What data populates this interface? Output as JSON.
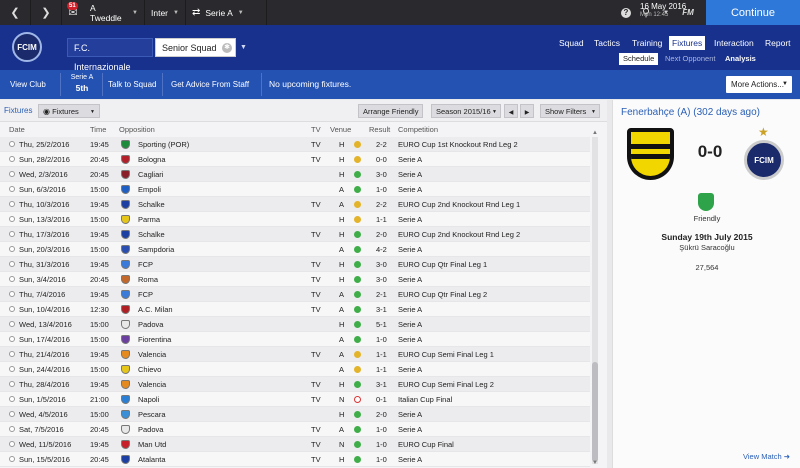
{
  "topbar": {
    "back_icon": "chevron-left-icon",
    "forward_icon": "chevron-right-icon",
    "inbox_count": "51",
    "manager": "A Tweddle",
    "club": "Inter",
    "league": "Serie A",
    "date": "16 May 2016",
    "time": "Mon 12:45",
    "continue_label": "Continue"
  },
  "clubbar": {
    "crest_text": "FCIM",
    "club_name": "F.C. Internazionale",
    "squad": "Senior Squad",
    "nav": [
      "Squad",
      "Tactics",
      "Training",
      "Fixtures",
      "Interaction",
      "Report"
    ],
    "nav_active": "Fixtures",
    "subnav": [
      "Schedule",
      "Next Opponent",
      "Analysis"
    ]
  },
  "infobar": {
    "view_club": "View Club",
    "league_name": "Serie A",
    "league_pos": "5th",
    "talk_to_squad": "Talk to Squad",
    "get_advice": "Get Advice From Staff",
    "message": "No upcoming fixtures.",
    "more_actions": "More Actions..."
  },
  "fixtures_toolbar": {
    "title": "Fixtures",
    "view_select": "Fixtures",
    "arrange_friendly": "Arrange Friendly",
    "season": "Season 2015/16",
    "show_filters": "Show Filters"
  },
  "table": {
    "headers": {
      "date": "Date",
      "time": "Time",
      "opposition": "Opposition",
      "tv": "TV",
      "venue": "Venue",
      "result": "Result",
      "competition": "Competition"
    },
    "rows": [
      {
        "date": "Thu, 25/2/2016",
        "time": "19:45",
        "opp": "Sporting (POR)",
        "tv": "TV",
        "venue": "H",
        "outcome": "draw",
        "result": "2-2",
        "comp": "EURO Cup 1st Knockout Rnd Leg 2",
        "crest": "#1e8a3c"
      },
      {
        "date": "Sun, 28/2/2016",
        "time": "20:45",
        "opp": "Bologna",
        "tv": "TV",
        "venue": "H",
        "outcome": "draw",
        "result": "0-0",
        "comp": "Serie A",
        "crest": "#b3202a"
      },
      {
        "date": "Wed, 2/3/2016",
        "time": "20:45",
        "opp": "Cagliari",
        "tv": "",
        "venue": "H",
        "outcome": "win",
        "result": "3-0",
        "comp": "Serie A",
        "crest": "#8a1f2a"
      },
      {
        "date": "Sun, 6/3/2016",
        "time": "15:00",
        "opp": "Empoli",
        "tv": "",
        "venue": "A",
        "outcome": "win",
        "result": "1-0",
        "comp": "Serie A",
        "crest": "#1f5fc4"
      },
      {
        "date": "Thu, 10/3/2016",
        "time": "19:45",
        "opp": "Schalke",
        "tv": "TV",
        "venue": "A",
        "outcome": "draw",
        "result": "2-2",
        "comp": "EURO Cup 2nd Knockout Rnd Leg 1",
        "crest": "#1c3fa3"
      },
      {
        "date": "Sun, 13/3/2016",
        "time": "15:00",
        "opp": "Parma",
        "tv": "",
        "venue": "H",
        "outcome": "draw",
        "result": "1-1",
        "comp": "Serie A",
        "crest": "#e6c619"
      },
      {
        "date": "Thu, 17/3/2016",
        "time": "19:45",
        "opp": "Schalke",
        "tv": "TV",
        "venue": "H",
        "outcome": "win",
        "result": "2-0",
        "comp": "EURO Cup 2nd Knockout Rnd Leg 2",
        "crest": "#1c3fa3"
      },
      {
        "date": "Sun, 20/3/2016",
        "time": "15:00",
        "opp": "Sampdoria",
        "tv": "",
        "venue": "A",
        "outcome": "win",
        "result": "4-2",
        "comp": "Serie A",
        "crest": "#2a4fb0"
      },
      {
        "date": "Thu, 31/3/2016",
        "time": "19:45",
        "opp": "FCP",
        "tv": "TV",
        "venue": "H",
        "outcome": "win",
        "result": "3-0",
        "comp": "EURO Cup Qtr Final Leg 1",
        "crest": "#3a7ad8"
      },
      {
        "date": "Sun, 3/4/2016",
        "time": "20:45",
        "opp": "Roma",
        "tv": "TV",
        "venue": "H",
        "outcome": "win",
        "result": "3-0",
        "comp": "Serie A",
        "crest": "#c2682a"
      },
      {
        "date": "Thu, 7/4/2016",
        "time": "19:45",
        "opp": "FCP",
        "tv": "TV",
        "venue": "A",
        "outcome": "win",
        "result": "2-1",
        "comp": "EURO Cup Qtr Final Leg 2",
        "crest": "#3a7ad8"
      },
      {
        "date": "Sun, 10/4/2016",
        "time": "12:30",
        "opp": "A.C. Milan",
        "tv": "TV",
        "venue": "A",
        "outcome": "win",
        "result": "3-1",
        "comp": "Serie A",
        "crest": "#b01f24"
      },
      {
        "date": "Wed, 13/4/2016",
        "time": "15:00",
        "opp": "Padova",
        "tv": "",
        "venue": "H",
        "outcome": "win",
        "result": "5-1",
        "comp": "Serie A",
        "crest": "#e8e8e8"
      },
      {
        "date": "Sun, 17/4/2016",
        "time": "15:00",
        "opp": "Fiorentina",
        "tv": "",
        "venue": "A",
        "outcome": "win",
        "result": "1-0",
        "comp": "Serie A",
        "crest": "#6b3fa0"
      },
      {
        "date": "Thu, 21/4/2016",
        "time": "19:45",
        "opp": "Valencia",
        "tv": "TV",
        "venue": "A",
        "outcome": "draw",
        "result": "1-1",
        "comp": "EURO Cup Semi Final Leg 1",
        "crest": "#e58a1f"
      },
      {
        "date": "Sun, 24/4/2016",
        "time": "15:00",
        "opp": "Chievo",
        "tv": "",
        "venue": "A",
        "outcome": "draw",
        "result": "1-1",
        "comp": "Serie A",
        "crest": "#e6c619"
      },
      {
        "date": "Thu, 28/4/2016",
        "time": "19:45",
        "opp": "Valencia",
        "tv": "TV",
        "venue": "H",
        "outcome": "win",
        "result": "3-1",
        "comp": "EURO Cup Semi Final Leg 2",
        "crest": "#e58a1f"
      },
      {
        "date": "Sun, 1/5/2016",
        "time": "21:00",
        "opp": "Napoli",
        "tv": "TV",
        "venue": "N",
        "outcome": "loss",
        "result": "0-1",
        "comp": "Italian Cup Final",
        "crest": "#2a7fd4"
      },
      {
        "date": "Wed, 4/5/2016",
        "time": "15:00",
        "opp": "Pescara",
        "tv": "",
        "venue": "H",
        "outcome": "win",
        "result": "2-0",
        "comp": "Serie A",
        "crest": "#3a8fd6"
      },
      {
        "date": "Sat, 7/5/2016",
        "time": "20:45",
        "opp": "Padova",
        "tv": "TV",
        "venue": "A",
        "outcome": "win",
        "result": "1-0",
        "comp": "Serie A",
        "crest": "#e8e8e8"
      },
      {
        "date": "Wed, 11/5/2016",
        "time": "19:45",
        "opp": "Man Utd",
        "tv": "TV",
        "venue": "N",
        "outcome": "win",
        "result": "1-0",
        "comp": "EURO Cup Final",
        "crest": "#c8202a"
      },
      {
        "date": "Sun, 15/5/2016",
        "time": "20:45",
        "opp": "Atalanta",
        "tv": "TV",
        "venue": "H",
        "outcome": "win",
        "result": "1-0",
        "comp": "Serie A",
        "crest": "#1c3fa3"
      }
    ]
  },
  "match_panel": {
    "title": "Fenerbahçe (A) (302 days ago)",
    "home_colors": {
      "primary": "#f2d600",
      "secondary": "#111111"
    },
    "score": "0-0",
    "away_crest_text": "FCIM",
    "competition": "Friendly",
    "date": "Sunday 19th July 2015",
    "stadium": "Şükrü Saracoğlu",
    "attendance": "27,564",
    "view_match": "View Match"
  },
  "colors": {
    "win": "#3fae49",
    "draw": "#e3b32a",
    "loss": "#dd3333",
    "accent": "#2d78d8",
    "header": "#17318d"
  }
}
